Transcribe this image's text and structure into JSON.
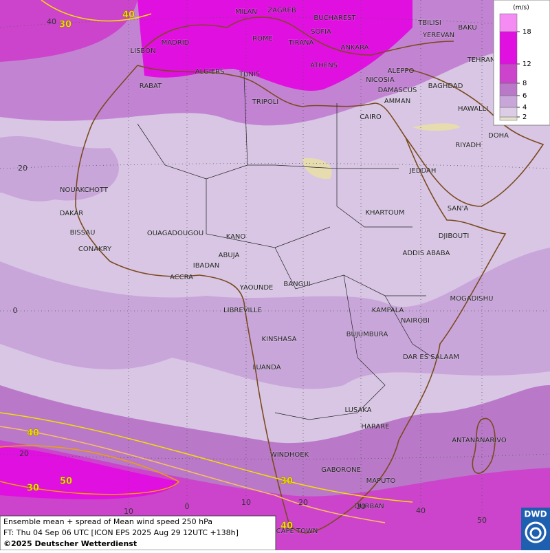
{
  "caption": {
    "line1": "Ensemble mean + spread of Mean wind speed 250 hPa",
    "line2": "FT: Thu 04 Sep 06 UTC [ICON EPS 2025 Aug 29 12UTC +138h]",
    "line3": "©2025 Deutscher Wetterdienst"
  },
  "logo": "DWD",
  "legend": {
    "unit": "(m/s)",
    "levels": [
      2,
      4,
      6,
      8,
      12,
      18
    ],
    "colors": [
      "#e6e2cc",
      "#dccce6",
      "#c9a6da",
      "#b978c8",
      "#cc44cc",
      "#e010e0",
      "#f48cf4"
    ]
  },
  "cities": [
    "MILAN",
    "ZAGREB",
    "BUCHAREST",
    "TBILISI",
    "BAKU",
    "ROME",
    "SOFIA",
    "YEREVAN",
    "MADRID",
    "TIRANA",
    "ANKARA",
    "LISBON",
    "TEHRAN",
    "ALGIERS",
    "TUNIS",
    "ATHENS",
    "ALEPPO",
    "RABAT",
    "NICOSIA",
    "BAGHDAD",
    "DAMASCUS",
    "TRIPOLI",
    "AMMAN",
    "HAWALLI",
    "CAIRO",
    "DOHA",
    "RIYADH",
    "JEDDAH",
    "NOUAKCHOTT",
    "KHARTOUM",
    "SAN'A",
    "DAKAR",
    "BISSAU",
    "DJIBOUTI",
    "OUAGADOUGOU",
    "KANO",
    "CONAKRY",
    "ABUJA",
    "ADDIS ABABA",
    "IBADAN",
    "ACCRA",
    "YAOUNDE",
    "BANGUI",
    "MOGADISHU",
    "LIBREVILLE",
    "KAMPALA",
    "NAIROBI",
    "BUJUMBURA",
    "KINSHASA",
    "DAR ES SALAAM",
    "LUANDA",
    "LUSAKA",
    "HARARE",
    "ANTANANARIVO",
    "WINDHOEK",
    "GABORONE",
    "MAPUTO",
    "DURBAN",
    "CAPE TOWN"
  ],
  "latitude_labels": [
    40,
    20,
    0,
    20
  ],
  "longitude_labels": [
    10,
    0,
    10,
    20,
    30,
    40,
    50
  ],
  "contour_labels": [
    30,
    40,
    40,
    50,
    30,
    30,
    40
  ]
}
